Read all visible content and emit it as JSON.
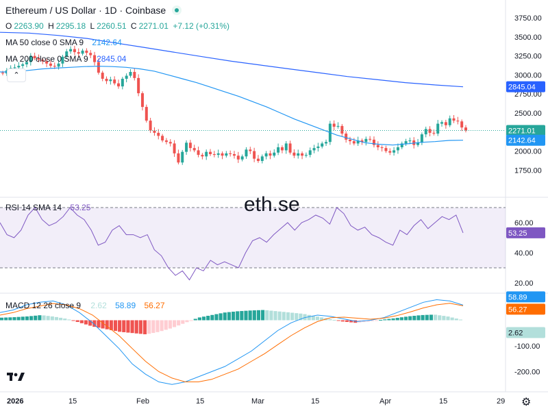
{
  "header": {
    "title": "Ethereum / US Dollar · 1D · Coinbase",
    "ohlc": {
      "o_label": "O",
      "o": "2263.90",
      "h_label": "H",
      "h": "2295.18",
      "l_label": "L",
      "l": "2260.51",
      "c_label": "C",
      "c": "2271.01",
      "change": "+7.12 (+0.31%)"
    },
    "ma50": {
      "label": "MA 50 close 0 SMA 9",
      "value": "2142.64"
    },
    "ma200": {
      "label": "MA 200 close 0 SMA 9",
      "value": "2845.04"
    },
    "rsi": {
      "label": "RSI 14 SMA 14",
      "value": "53.25"
    },
    "macd": {
      "label": "MACD 12 26 close 9",
      "hist": "2.62",
      "macd": "58.89",
      "signal": "56.27"
    }
  },
  "watermark": "eth.se",
  "colors": {
    "up": "#26a69a",
    "down": "#ef5350",
    "ma50": "#2196f3",
    "ma200": "#2962ff",
    "rsi": "#7e57c2",
    "macd": "#2196f3",
    "signal": "#ff6d00",
    "hist_up": "#26a69a",
    "hist_up_light": "#b2dfdb",
    "hist_down": "#ef5350",
    "hist_down_light": "#ffcdd2"
  },
  "icons": {
    "logo": "tradingview-logo-icon",
    "settings": "gear-icon",
    "collapse": "chevron-up-icon",
    "status": "market-open-dot-icon"
  },
  "chart_data": [
    {
      "type": "candlestick",
      "title": "Ethereum / US Dollar · 1D · Coinbase",
      "x_ticks": [
        "2026",
        "15",
        "Feb",
        "15",
        "Mar",
        "15",
        "Apr",
        "15",
        "29"
      ],
      "y_ticks": [
        "3750.00",
        "3500.00",
        "3250.00",
        "3000.00",
        "2750.00",
        "2500.00",
        "2250.00",
        "2000.00",
        "1750.00"
      ],
      "ylim": [
        1600,
        3850
      ],
      "price_labels": [
        {
          "text": "2845.04",
          "value": 2845.04,
          "color": "#2962ff"
        },
        {
          "text": "2271.01",
          "value": 2271.01,
          "color": "#26a69a"
        },
        {
          "text": "2142.64",
          "value": 2142.64,
          "color": "#2196f3"
        }
      ],
      "close": [
        3020,
        3060,
        3090,
        3100,
        3120,
        3140,
        3170,
        3250,
        3220,
        3200,
        3180,
        3150,
        3120,
        3110,
        3150,
        3240,
        3310,
        3340,
        3300,
        3280,
        3320,
        3290,
        3260,
        3170,
        3030,
        2950,
        2920,
        2940,
        2890,
        2850,
        2950,
        2990,
        3040,
        2960,
        2760,
        2580,
        2400,
        2270,
        2240,
        2200,
        2140,
        2120,
        2100,
        1970,
        1850,
        1990,
        2110,
        2040,
        2010,
        1950,
        1930,
        1990,
        1960,
        1950,
        1970,
        1940,
        1970,
        1960,
        1940,
        1890,
        1930,
        2020,
        2000,
        1900,
        1870,
        1930,
        1970,
        1940,
        1980,
        2050,
        2010,
        2100,
        1980,
        1940,
        1970,
        1940,
        1950,
        2010,
        2040,
        2060,
        2100,
        2120,
        2360,
        2320,
        2330,
        2230,
        2150,
        2130,
        2100,
        2140,
        2120,
        2160,
        2150,
        2080,
        2050,
        2040,
        2000,
        1980,
        2010,
        2050,
        2100,
        2130,
        2140,
        2080,
        2110,
        2220,
        2290,
        2240,
        2230,
        2360,
        2380,
        2340,
        2430,
        2400,
        2390,
        2310,
        2271
      ],
      "series": [
        {
          "name": "MA 50 close 0 SMA 9",
          "values_key": "ma50"
        },
        {
          "name": "MA 200 close 0 SMA 9",
          "values_key": "ma200"
        }
      ],
      "ma50": [
        3040,
        3040,
        3060,
        3080,
        3090,
        3100,
        3110,
        3115,
        3110,
        3100,
        3080,
        3050,
        3000,
        2950,
        2900,
        2840,
        2780,
        2720,
        2650,
        2580,
        2500,
        2420,
        2350,
        2280,
        2210,
        2160,
        2110,
        2090,
        2080,
        2095,
        2115,
        2125,
        2140,
        2142.64
      ],
      "ma200": [
        3560,
        3550,
        3520,
        3480,
        3420,
        3360,
        3300,
        3240,
        3180,
        3130,
        3080,
        3030,
        2980,
        2940,
        2900,
        2870,
        2845.04
      ]
    },
    {
      "type": "line",
      "title": "RSI 14 SMA 14",
      "y_ticks": [
        "60.00",
        "40.00",
        "20.00"
      ],
      "ylim": [
        15,
        75
      ],
      "bands": [
        70,
        30
      ],
      "series": [
        {
          "name": "RSI 14 SMA 14",
          "values": [
            60,
            52,
            50,
            55,
            65,
            70,
            62,
            58,
            60,
            64,
            70,
            65,
            62,
            55,
            45,
            47,
            55,
            58,
            52,
            52,
            50,
            52,
            42,
            38,
            30,
            25,
            28,
            22,
            30,
            28,
            35,
            32,
            34,
            32,
            30,
            40,
            48,
            50,
            47,
            52,
            56,
            60,
            55,
            60,
            62,
            65,
            63,
            59,
            70,
            66,
            58,
            55,
            57,
            52,
            50,
            47,
            45,
            55,
            52,
            58,
            62,
            56,
            60,
            64,
            62,
            65,
            53.25
          ]
        }
      ],
      "price_labels": [
        {
          "text": "53.25",
          "value": 53.25
        }
      ]
    },
    {
      "type": "bar+line",
      "title": "MACD 12 26 close 9",
      "y_ticks": [
        "-100.00",
        "-200.00"
      ],
      "ylim": [
        -260,
        100
      ],
      "series": [
        {
          "name": "MACD",
          "values": [
            30,
            40,
            60,
            70,
            75,
            60,
            30,
            -10,
            -60,
            -110,
            -170,
            -210,
            -240,
            -250,
            -240,
            -220,
            -200,
            -180,
            -150,
            -120,
            -80,
            -40,
            -10,
            10,
            20,
            15,
            5,
            -5,
            0,
            10,
            30,
            50,
            70,
            80,
            75,
            58.89
          ]
        },
        {
          "name": "Signal",
          "values": [
            20,
            30,
            45,
            55,
            65,
            60,
            45,
            20,
            -20,
            -60,
            -110,
            -160,
            -200,
            -225,
            -240,
            -240,
            -230,
            -210,
            -190,
            -160,
            -130,
            -95,
            -60,
            -30,
            -5,
            10,
            12,
            8,
            4,
            8,
            18,
            32,
            48,
            60,
            66,
            56.27
          ]
        },
        {
          "name": "Histogram",
          "values": [
            10,
            12,
            15,
            20,
            14,
            5,
            -10,
            -25,
            -35,
            -45,
            -50,
            -55,
            -45,
            -30,
            -10,
            10,
            20,
            30,
            35,
            38,
            40,
            35,
            30,
            25,
            15,
            5,
            -5,
            -10,
            -5,
            2,
            8,
            15,
            20,
            22,
            15,
            2.62
          ]
        }
      ],
      "price_labels": [
        {
          "text": "58.89",
          "value": 58.89,
          "color": "#2196f3"
        },
        {
          "text": "56.27",
          "value": 56.27,
          "color": "#ff6d00"
        },
        {
          "text": "2.62",
          "value": 2.62,
          "color": "#b2dfdb"
        }
      ]
    }
  ]
}
